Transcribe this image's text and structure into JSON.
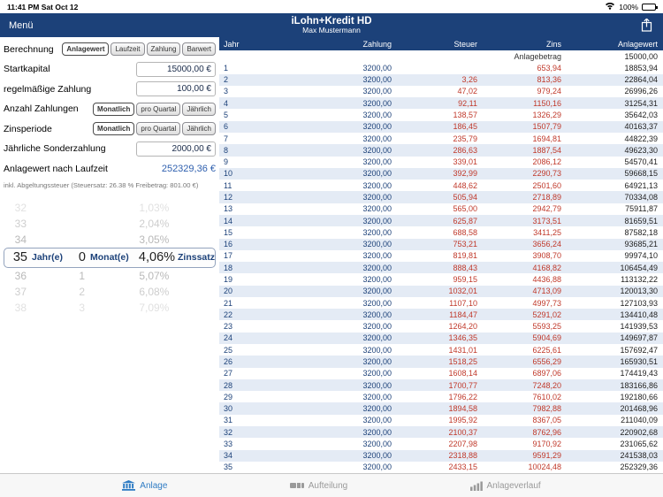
{
  "status_bar": {
    "time": "11:41 PM",
    "date": "Sat Oct 12",
    "battery": "100%"
  },
  "nav": {
    "menu": "Menü",
    "title": "iLohn+Kredit HD",
    "subtitle": "Max Mustermann"
  },
  "form": {
    "berechnung": {
      "label": "Berechnung",
      "options": [
        "Anlagewert",
        "Laufzeit",
        "Zahlung",
        "Barwert"
      ],
      "selected": 0
    },
    "startkapital": {
      "label": "Startkapital",
      "value": "15000,00 €"
    },
    "regelzahlung": {
      "label": "regelmäßige Zahlung",
      "value": "100,00 €"
    },
    "anzahl_zahlungen": {
      "label": "Anzahl Zahlungen",
      "options": [
        "Monatlich",
        "pro Quartal",
        "Jährlich"
      ],
      "selected": 0
    },
    "zinsperiode": {
      "label": "Zinsperiode",
      "options": [
        "Monatlich",
        "pro Quartal",
        "Jährlich"
      ],
      "selected": 0
    },
    "sonderzahlung": {
      "label": "Jährliche Sonderzahlung",
      "value": "2000,00 €"
    },
    "result": {
      "label": "Anlagewert nach Laufzeit",
      "value": "252329,36 €"
    },
    "note": "inkl. Abgeltungssteuer (Steuersatz: 26.38 % Freibetrag: 801.00 €)"
  },
  "picker": {
    "labels": {
      "year": "Jahr(e)",
      "month": "Monat(e)",
      "rate": "Zinssatz"
    },
    "rows": [
      {
        "year": "32",
        "month": "",
        "rate_int": "1",
        "rate_dec": ",03%",
        "selected": false
      },
      {
        "year": "33",
        "month": "",
        "rate_int": "2",
        "rate_dec": ",04%",
        "selected": false
      },
      {
        "year": "34",
        "month": "",
        "rate_int": "3",
        "rate_dec": ",05%",
        "selected": false
      },
      {
        "year": "35",
        "month": "0",
        "rate_int": "4",
        "rate_dec": ",06%",
        "selected": true
      },
      {
        "year": "36",
        "month": "1",
        "rate_int": "5",
        "rate_dec": ",07%",
        "selected": false
      },
      {
        "year": "37",
        "month": "2",
        "rate_int": "6",
        "rate_dec": ",08%",
        "selected": false
      },
      {
        "year": "38",
        "month": "3",
        "rate_int": "7",
        "rate_dec": ",09%",
        "selected": false
      }
    ]
  },
  "table": {
    "headers": [
      "Jahr",
      "Zahlung",
      "Steuer",
      "Zins",
      "Anlagewert"
    ],
    "initial_row": {
      "label": "Anlagebetrag",
      "value": "15000,00"
    },
    "rows": [
      [
        "1",
        "3200,00",
        "",
        "653,94",
        "18853,94"
      ],
      [
        "2",
        "3200,00",
        "3,26",
        "813,36",
        "22864,04"
      ],
      [
        "3",
        "3200,00",
        "47,02",
        "979,24",
        "26996,26"
      ],
      [
        "4",
        "3200,00",
        "92,11",
        "1150,16",
        "31254,31"
      ],
      [
        "5",
        "3200,00",
        "138,57",
        "1326,29",
        "35642,03"
      ],
      [
        "6",
        "3200,00",
        "186,45",
        "1507,79",
        "40163,37"
      ],
      [
        "7",
        "3200,00",
        "235,79",
        "1694,81",
        "44822,39"
      ],
      [
        "8",
        "3200,00",
        "286,63",
        "1887,54",
        "49623,30"
      ],
      [
        "9",
        "3200,00",
        "339,01",
        "2086,12",
        "54570,41"
      ],
      [
        "10",
        "3200,00",
        "392,99",
        "2290,73",
        "59668,15"
      ],
      [
        "11",
        "3200,00",
        "448,62",
        "2501,60",
        "64921,13"
      ],
      [
        "12",
        "3200,00",
        "505,94",
        "2718,89",
        "70334,08"
      ],
      [
        "13",
        "3200,00",
        "565,00",
        "2942,79",
        "75911,87"
      ],
      [
        "14",
        "3200,00",
        "625,87",
        "3173,51",
        "81659,51"
      ],
      [
        "15",
        "3200,00",
        "688,58",
        "3411,25",
        "87582,18"
      ],
      [
        "16",
        "3200,00",
        "753,21",
        "3656,24",
        "93685,21"
      ],
      [
        "17",
        "3200,00",
        "819,81",
        "3908,70",
        "99974,10"
      ],
      [
        "18",
        "3200,00",
        "888,43",
        "4168,82",
        "106454,49"
      ],
      [
        "19",
        "3200,00",
        "959,15",
        "4436,88",
        "113132,22"
      ],
      [
        "20",
        "3200,00",
        "1032,01",
        "4713,09",
        "120013,30"
      ],
      [
        "21",
        "3200,00",
        "1107,10",
        "4997,73",
        "127103,93"
      ],
      [
        "22",
        "3200,00",
        "1184,47",
        "5291,02",
        "134410,48"
      ],
      [
        "23",
        "3200,00",
        "1264,20",
        "5593,25",
        "141939,53"
      ],
      [
        "24",
        "3200,00",
        "1346,35",
        "5904,69",
        "149697,87"
      ],
      [
        "25",
        "3200,00",
        "1431,01",
        "6225,61",
        "157692,47"
      ],
      [
        "26",
        "3200,00",
        "1518,25",
        "6556,29",
        "165930,51"
      ],
      [
        "27",
        "3200,00",
        "1608,14",
        "6897,06",
        "174419,43"
      ],
      [
        "28",
        "3200,00",
        "1700,77",
        "7248,20",
        "183166,86"
      ],
      [
        "29",
        "3200,00",
        "1796,22",
        "7610,02",
        "192180,66"
      ],
      [
        "30",
        "3200,00",
        "1894,58",
        "7982,88",
        "201468,96"
      ],
      [
        "31",
        "3200,00",
        "1995,92",
        "8367,05",
        "211040,09"
      ],
      [
        "32",
        "3200,00",
        "2100,37",
        "8762,96",
        "220902,68"
      ],
      [
        "33",
        "3200,00",
        "2207,98",
        "9170,92",
        "231065,62"
      ],
      [
        "34",
        "3200,00",
        "2318,88",
        "9591,29",
        "241538,03"
      ],
      [
        "35",
        "3200,00",
        "2433,15",
        "10024,48",
        "252329,36"
      ]
    ]
  },
  "tab_bar": {
    "items": [
      {
        "label": "Anlage",
        "icon": "bank-icon",
        "active": true
      },
      {
        "label": "Aufteilung",
        "icon": "distribution-icon",
        "active": false
      },
      {
        "label": "Anlageverlauf",
        "icon": "bar-chart-icon",
        "active": false
      }
    ]
  }
}
